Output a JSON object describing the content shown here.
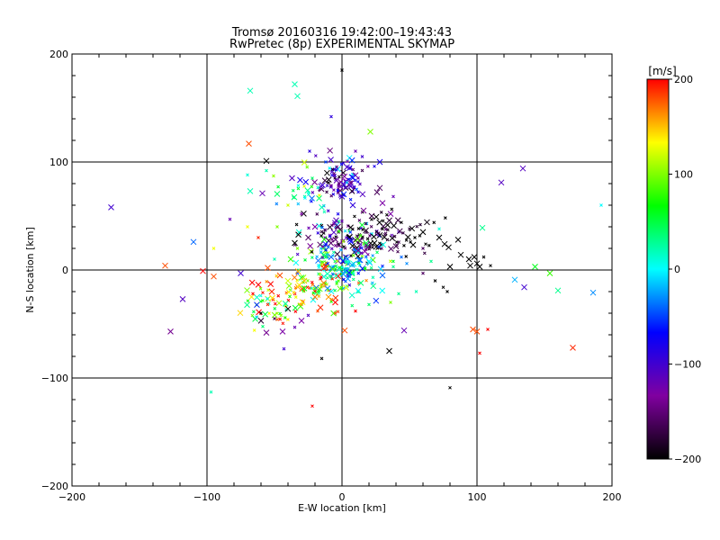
{
  "chart_data": {
    "type": "scatter",
    "title": "Tromsø 20160316 19:42:00–19:43:43",
    "subtitle": "RwPretec (8p) EXPERIMENTAL SKYMAP",
    "xlabel": "E-W location [km]",
    "ylabel": "N-S location [km]",
    "xlim": [
      -200,
      200
    ],
    "ylim": [
      -200,
      200
    ],
    "xticks": [
      -200,
      -100,
      0,
      100,
      200
    ],
    "yticks": [
      -200,
      -100,
      0,
      100,
      200
    ],
    "grid": true,
    "colorbar": {
      "title": "[m/s]",
      "min": -200,
      "max": 200,
      "ticks": [
        200,
        100,
        0,
        -100,
        -200
      ],
      "colormap": [
        "#000000",
        "#8000a0",
        "#0000ff",
        "#00ffff",
        "#00ff00",
        "#ffff00",
        "#ff0000"
      ]
    },
    "markers": {
      "large": "x",
      "small": "x"
    },
    "points": [
      {
        "x": -68,
        "y": 166,
        "v": 20,
        "m": "x"
      },
      {
        "x": -35,
        "y": 172,
        "v": 20,
        "m": "x"
      },
      {
        "x": -33,
        "y": 161,
        "v": 20,
        "m": "x"
      },
      {
        "x": 21,
        "y": 128,
        "v": 100,
        "m": "x"
      },
      {
        "x": -69,
        "y": 117,
        "v": 180,
        "m": "x"
      },
      {
        "x": -68,
        "y": 73,
        "v": 20,
        "m": "x"
      },
      {
        "x": -59,
        "y": 71,
        "v": -120,
        "m": "x"
      },
      {
        "x": -171,
        "y": 58,
        "v": -100,
        "m": "x"
      },
      {
        "x": -110,
        "y": 26,
        "v": -40,
        "m": "x"
      },
      {
        "x": -131,
        "y": 4,
        "v": 180,
        "m": "x"
      },
      {
        "x": -103,
        "y": -1,
        "v": 200,
        "m": "x"
      },
      {
        "x": -95,
        "y": -6,
        "v": 180,
        "m": "x"
      },
      {
        "x": -118,
        "y": -27,
        "v": -110,
        "m": "x"
      },
      {
        "x": -127,
        "y": -57,
        "v": -140,
        "m": "x"
      },
      {
        "x": 134,
        "y": 94,
        "v": -110,
        "m": "x"
      },
      {
        "x": 118,
        "y": 81,
        "v": -110,
        "m": "x"
      },
      {
        "x": 28,
        "y": 100,
        "v": -80,
        "m": "x"
      },
      {
        "x": 104,
        "y": 39,
        "v": 30,
        "m": "x"
      },
      {
        "x": 143,
        "y": 3,
        "v": 60,
        "m": "x"
      },
      {
        "x": 154,
        "y": -3,
        "v": 80,
        "m": "x"
      },
      {
        "x": 128,
        "y": -9,
        "v": -20,
        "m": "x"
      },
      {
        "x": 135,
        "y": -16,
        "v": -100,
        "m": "x"
      },
      {
        "x": 160,
        "y": -19,
        "v": 30,
        "m": "x"
      },
      {
        "x": 186,
        "y": -21,
        "v": -30,
        "m": "x"
      },
      {
        "x": 171,
        "y": -72,
        "v": 190,
        "m": "x"
      },
      {
        "x": 35,
        "y": -75,
        "v": -200,
        "m": "x"
      },
      {
        "x": 46,
        "y": -56,
        "v": -120,
        "m": "x"
      },
      {
        "x": 2,
        "y": -56,
        "v": 180,
        "m": "x"
      },
      {
        "x": 97,
        "y": -55,
        "v": 180,
        "m": "x"
      },
      {
        "x": 100,
        "y": -57,
        "v": 180,
        "m": "x"
      },
      {
        "x": -44,
        "y": -57,
        "v": -130,
        "m": "x"
      },
      {
        "x": -56,
        "y": -58,
        "v": -140,
        "m": "x"
      },
      {
        "x": -75,
        "y": -3,
        "v": -100,
        "m": "x"
      },
      {
        "x": -56,
        "y": 101,
        "v": -200,
        "m": "x"
      },
      {
        "x": -37,
        "y": 85,
        "v": -110,
        "m": "x"
      },
      {
        "x": -55,
        "y": 2,
        "v": 180,
        "m": "x"
      },
      {
        "x": -46,
        "y": -5,
        "v": 180,
        "m": "x"
      },
      {
        "x": -35,
        "y": 25,
        "v": -200,
        "m": "x"
      },
      {
        "x": -25,
        "y": 30,
        "v": -160,
        "m": "x"
      },
      {
        "x": -3,
        "y": 40,
        "v": -160,
        "m": "x"
      },
      {
        "x": 12,
        "y": 18,
        "v": -140,
        "m": "x"
      },
      {
        "x": 24,
        "y": 25,
        "v": -200,
        "m": "x"
      },
      {
        "x": 88,
        "y": 14,
        "v": -200,
        "m": "x"
      },
      {
        "x": 94,
        "y": 10,
        "v": -200,
        "m": "x"
      },
      {
        "x": 100,
        "y": 6,
        "v": -200,
        "m": "x"
      },
      {
        "x": 98,
        "y": 12,
        "v": -200,
        "m": "x"
      },
      {
        "x": 102,
        "y": 3,
        "v": -200,
        "m": "x"
      },
      {
        "x": 95,
        "y": 4,
        "v": -200,
        "m": "x"
      },
      {
        "x": 76,
        "y": 24,
        "v": -200,
        "m": "x"
      },
      {
        "x": 86,
        "y": 28,
        "v": -200,
        "m": "x"
      },
      {
        "x": 72,
        "y": 30,
        "v": -200,
        "m": "x"
      },
      {
        "x": 79,
        "y": 21,
        "v": -200,
        "m": "x"
      },
      {
        "x": 80,
        "y": 3,
        "v": -200,
        "m": "x"
      },
      {
        "x": 28,
        "y": 76,
        "v": -160,
        "m": "x"
      },
      {
        "x": -40,
        "y": -36,
        "v": -200,
        "m": "x"
      },
      {
        "x": -60,
        "y": -47,
        "v": -180,
        "m": "x"
      },
      {
        "x": -30,
        "y": -47,
        "v": -130,
        "m": "x"
      },
      {
        "x": -5,
        "y": -30,
        "v": 200,
        "m": "x"
      },
      {
        "x": -10,
        "y": -25,
        "v": 160,
        "m": "x"
      },
      {
        "x": -20,
        "y": -25,
        "v": 170,
        "m": "x"
      },
      {
        "x": -28,
        "y": -10,
        "v": 150,
        "m": "x"
      },
      {
        "x": 8,
        "y": 60,
        "v": -90,
        "m": "x"
      },
      {
        "x": 16,
        "y": 55,
        "v": -140,
        "m": "x"
      },
      {
        "x": 0,
        "y": 68,
        "v": -100,
        "m": "x"
      },
      {
        "x": 22,
        "y": 50,
        "v": -170,
        "m": "x"
      },
      {
        "x": 30,
        "y": 62,
        "v": -130,
        "m": "x"
      },
      {
        "x": 36,
        "y": 52,
        "v": -130,
        "m": "x"
      },
      {
        "x": -15,
        "y": 58,
        "v": 20,
        "m": "x"
      },
      {
        "x": -20,
        "y": 40,
        "v": -130,
        "m": "x"
      },
      {
        "x": 40,
        "y": 22,
        "v": -170,
        "m": "x"
      },
      {
        "x": 6,
        "y": 28,
        "v": -80,
        "m": "x"
      },
      {
        "x": -8,
        "y": 12,
        "v": -40,
        "m": "x"
      },
      {
        "x": 20,
        "y": 8,
        "v": 0,
        "m": "x"
      },
      {
        "x": 30,
        "y": -5,
        "v": -40,
        "m": "x"
      },
      {
        "x": 14,
        "y": -12,
        "v": 40,
        "m": "x"
      },
      {
        "x": -52,
        "y": -20,
        "v": 190,
        "m": "x"
      },
      {
        "x": -38,
        "y": 10,
        "v": 80,
        "m": "x"
      },
      {
        "x": 0,
        "y": 185,
        "v": -200,
        "m": "+"
      },
      {
        "x": -8,
        "y": 142,
        "v": -90,
        "m": "+"
      },
      {
        "x": -56,
        "y": 92,
        "v": 20,
        "m": "+"
      },
      {
        "x": -95,
        "y": 20,
        "v": 130,
        "m": "+"
      },
      {
        "x": -83,
        "y": 47,
        "v": -120,
        "m": "+"
      },
      {
        "x": 192,
        "y": 60,
        "v": 0,
        "m": "+"
      },
      {
        "x": -97,
        "y": -113,
        "v": 20,
        "m": "+"
      },
      {
        "x": -22,
        "y": -126,
        "v": 200,
        "m": "+"
      },
      {
        "x": -15,
        "y": -82,
        "v": -200,
        "m": "+"
      },
      {
        "x": 80,
        "y": -109,
        "v": -200,
        "m": "+"
      },
      {
        "x": 102,
        "y": -77,
        "v": 200,
        "m": "+"
      },
      {
        "x": 108,
        "y": -55,
        "v": 200,
        "m": "+"
      },
      {
        "x": -43,
        "y": -73,
        "v": -100,
        "m": "+"
      },
      {
        "x": 75,
        "y": -16,
        "v": -200,
        "m": "+"
      },
      {
        "x": 69,
        "y": -10,
        "v": -200,
        "m": "+"
      },
      {
        "x": 78,
        "y": -20,
        "v": -200,
        "m": "+"
      },
      {
        "x": 60,
        "y": -3,
        "v": -160,
        "m": "+"
      },
      {
        "x": 72,
        "y": 38,
        "v": 10,
        "m": "+"
      },
      {
        "x": 105,
        "y": 12,
        "v": -200,
        "m": "+"
      },
      {
        "x": 110,
        "y": 4,
        "v": -200,
        "m": "+"
      },
      {
        "x": 58,
        "y": 42,
        "v": -180,
        "m": "+"
      },
      {
        "x": 50,
        "y": 38,
        "v": -180,
        "m": "+"
      },
      {
        "x": 44,
        "y": 44,
        "v": -200,
        "m": "+"
      },
      {
        "x": 54,
        "y": 30,
        "v": -200,
        "m": "+"
      },
      {
        "x": 62,
        "y": 24,
        "v": -200,
        "m": "+"
      },
      {
        "x": -62,
        "y": 30,
        "v": 190,
        "m": "+"
      },
      {
        "x": -70,
        "y": 40,
        "v": 130,
        "m": "+"
      },
      {
        "x": -48,
        "y": 40,
        "v": 100,
        "m": "+"
      },
      {
        "x": -33,
        "y": 20,
        "v": 100,
        "m": "+"
      },
      {
        "x": -40,
        "y": 60,
        "v": 120,
        "m": "+"
      },
      {
        "x": -30,
        "y": 52,
        "v": -130,
        "m": "+"
      },
      {
        "x": 38,
        "y": 68,
        "v": -120,
        "m": "+"
      },
      {
        "x": 30,
        "y": 38,
        "v": -200,
        "m": "+"
      },
      {
        "x": 44,
        "y": 12,
        "v": -40,
        "m": "+"
      },
      {
        "x": 38,
        "y": 3,
        "v": 30,
        "m": "+"
      },
      {
        "x": 48,
        "y": 6,
        "v": -30,
        "m": "+"
      },
      {
        "x": 42,
        "y": -22,
        "v": 30,
        "m": "+"
      },
      {
        "x": 36,
        "y": -30,
        "v": 100,
        "m": "+"
      },
      {
        "x": 20,
        "y": -32,
        "v": 40,
        "m": "+"
      },
      {
        "x": 10,
        "y": -38,
        "v": 200,
        "m": "+"
      },
      {
        "x": -5,
        "y": -40,
        "v": 180,
        "m": "+"
      },
      {
        "x": -18,
        "y": -38,
        "v": 180,
        "m": "+"
      },
      {
        "x": -30,
        "y": -32,
        "v": 160,
        "m": "+"
      },
      {
        "x": -55,
        "y": -32,
        "v": 190,
        "m": "+"
      },
      {
        "x": -66,
        "y": -22,
        "v": 200,
        "m": "+"
      },
      {
        "x": -60,
        "y": -40,
        "v": -200,
        "m": "+"
      },
      {
        "x": -50,
        "y": -45,
        "v": -170,
        "m": "+"
      },
      {
        "x": -35,
        "y": -53,
        "v": -120,
        "m": "+"
      },
      {
        "x": -25,
        "y": -42,
        "v": -110,
        "m": "+"
      },
      {
        "x": 15,
        "y": 105,
        "v": -100,
        "m": "+"
      },
      {
        "x": 24,
        "y": 96,
        "v": -80,
        "m": "+"
      },
      {
        "x": 10,
        "y": 110,
        "v": -120,
        "m": "+"
      },
      {
        "x": -24,
        "y": 110,
        "v": -90,
        "m": "+"
      },
      {
        "x": -12,
        "y": 100,
        "v": -50,
        "m": "+"
      },
      {
        "x": -22,
        "y": 85,
        "v": 40,
        "m": "+"
      },
      {
        "x": -25,
        "y": 72,
        "v": 10,
        "m": "+"
      },
      {
        "x": -50,
        "y": 10,
        "v": 20,
        "m": "+"
      },
      {
        "x": -15,
        "y": 5,
        "v": 120,
        "m": "+"
      },
      {
        "x": 55,
        "y": -20,
        "v": 20,
        "m": "+"
      },
      {
        "x": 60,
        "y": 20,
        "v": -160,
        "m": "+"
      },
      {
        "x": 66,
        "y": 8,
        "v": 30,
        "m": "+"
      },
      {
        "x": -70,
        "y": 88,
        "v": 10,
        "m": "+"
      }
    ],
    "clusters": [
      {
        "cx": 0,
        "cy": 82,
        "sx": 9,
        "sy": 9,
        "v": -110,
        "dv": 45,
        "n": 90
      },
      {
        "cx": 15,
        "cy": 28,
        "sx": 14,
        "sy": 9,
        "v": -170,
        "dv": 40,
        "n": 80
      },
      {
        "cx": 2,
        "cy": 5,
        "sx": 14,
        "sy": 14,
        "v": 0,
        "dv": 60,
        "n": 160
      },
      {
        "cx": -18,
        "cy": -15,
        "sx": 12,
        "sy": 10,
        "v": 120,
        "dv": 60,
        "n": 70
      },
      {
        "cx": -55,
        "cy": -30,
        "sx": 10,
        "sy": 10,
        "v": 140,
        "dv": 90,
        "n": 60
      },
      {
        "cx": -10,
        "cy": 35,
        "sx": 14,
        "sy": 12,
        "v": -140,
        "dv": 60,
        "n": 40
      },
      {
        "cx": 40,
        "cy": 35,
        "sx": 14,
        "sy": 12,
        "v": -200,
        "dv": 30,
        "n": 40
      },
      {
        "cx": -30,
        "cy": 75,
        "sx": 12,
        "sy": 10,
        "v": 40,
        "dv": 60,
        "n": 25
      }
    ]
  }
}
